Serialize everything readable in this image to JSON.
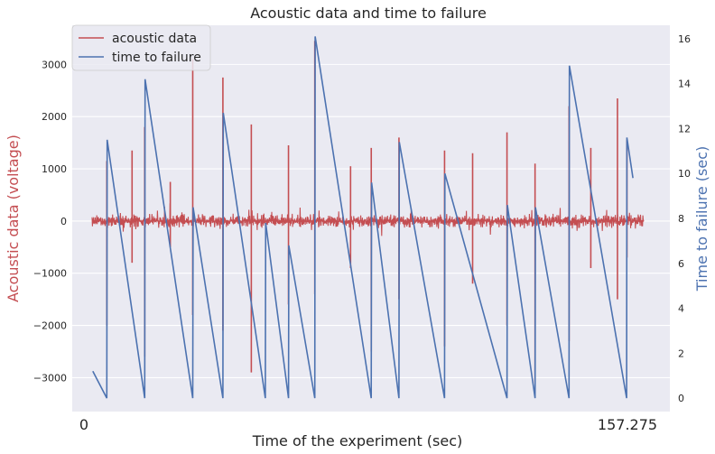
{
  "chart_data": {
    "type": "line",
    "title": "Acoustic data and time to failure",
    "xlabel": "Time of the experiment (sec)",
    "x_ticks": [
      "0",
      "157.275"
    ],
    "xlim": [
      0,
      157.275
    ],
    "left_axis": {
      "label": "Acoustic data (voltage)",
      "color": "#c44e52",
      "ylim": [
        -3650,
        3750
      ],
      "ticks": [
        -3000,
        -2000,
        -1000,
        0,
        1000,
        2000,
        3000
      ]
    },
    "right_axis": {
      "label": "Time to failure (sec)",
      "color": "#4c72b0",
      "ylim": [
        -0.6,
        16.6
      ],
      "ticks": [
        0,
        2,
        4,
        6,
        8,
        10,
        12,
        14,
        16
      ]
    },
    "grid": true,
    "legend": {
      "placement": "top-left",
      "entries": [
        "acoustic data",
        "time to failure"
      ]
    },
    "series": [
      {
        "name": "acoustic data",
        "axis": "left",
        "color": "#c44e52",
        "baseline_noise": 150,
        "spikes": [
          {
            "x": 4.2,
            "up": 1150,
            "down": -2000
          },
          {
            "x": 11.4,
            "up": 1350,
            "down": -800
          },
          {
            "x": 15.0,
            "up": 1800,
            "down": -2600
          },
          {
            "x": 22.3,
            "up": 750,
            "down": -500
          },
          {
            "x": 28.7,
            "up": 3100,
            "down": -1800
          },
          {
            "x": 37.3,
            "up": 2750,
            "down": -2100
          },
          {
            "x": 45.4,
            "up": 1850,
            "down": -2900
          },
          {
            "x": 56.0,
            "up": 1450,
            "down": -1600
          },
          {
            "x": 63.5,
            "up": 3450,
            "down": -1400
          },
          {
            "x": 73.7,
            "up": 1050,
            "down": -900
          },
          {
            "x": 79.6,
            "up": 1400,
            "down": -2500
          },
          {
            "x": 87.5,
            "up": 1600,
            "down": -1500
          },
          {
            "x": 100.5,
            "up": 1350,
            "down": -2400
          },
          {
            "x": 108.5,
            "up": 1300,
            "down": -1200
          },
          {
            "x": 118.3,
            "up": 1700,
            "down": -2000
          },
          {
            "x": 126.3,
            "up": 1100,
            "down": -3100
          },
          {
            "x": 136.0,
            "up": 2200,
            "down": -2300
          },
          {
            "x": 142.2,
            "up": 1400,
            "down": -900
          },
          {
            "x": 149.8,
            "up": 2350,
            "down": -1500
          },
          {
            "x": 152.5,
            "up": 1550,
            "down": -700
          }
        ]
      },
      {
        "name": "time to failure",
        "axis": "right",
        "color": "#4c72b0",
        "x": [
          0.2,
          4.2,
          4.3,
          15.0,
          15.1,
          28.7,
          28.8,
          37.3,
          37.4,
          49.4,
          49.5,
          56.0,
          56.1,
          63.5,
          63.6,
          79.6,
          79.7,
          87.5,
          87.6,
          100.5,
          100.6,
          118.3,
          118.4,
          126.3,
          126.4,
          136.0,
          136.1,
          152.4,
          152.5,
          154.2
        ],
        "values": [
          1.2,
          0.0,
          11.5,
          0.0,
          14.2,
          0.0,
          8.5,
          0.0,
          12.7,
          0.0,
          7.8,
          0.0,
          6.8,
          0.0,
          16.1,
          0.0,
          9.6,
          0.0,
          11.4,
          0.0,
          10.0,
          0.0,
          8.6,
          0.0,
          8.5,
          0.0,
          14.8,
          0.0,
          11.6,
          9.8
        ]
      }
    ]
  }
}
